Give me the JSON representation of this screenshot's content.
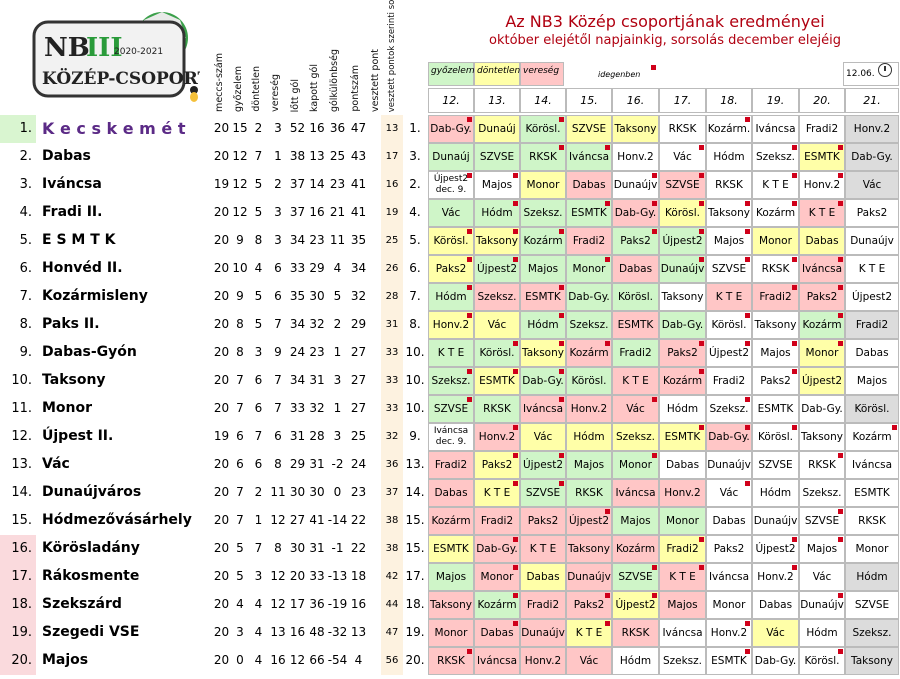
{
  "logo": {
    "line1": "NB",
    "roman": "III",
    "season": "2020-2021",
    "line2": "KÖZÉP-CSOPORT"
  },
  "header": {
    "columns": [
      "meccs-szám",
      "győzelem",
      "döntetlen",
      "vereség",
      "lőtt gól",
      "kapott gól",
      "gólkülönbség",
      "pontszám",
      "vesztett pont",
      "vesztett pontok szerinti sorrend"
    ],
    "title": "Az NB3 Közép csoportjának eredményei",
    "subtitle": "október elejétől napjainkig, sorsolás december elejéig",
    "legend": {
      "win": "győzelem",
      "draw": "döntetlen",
      "loss": "vereség",
      "home": "idegenben",
      "date": "12.06."
    },
    "rounds": [
      "12.",
      "13.",
      "14.",
      "15.",
      "16.",
      "17.",
      "18.",
      "19.",
      "20.",
      "21."
    ]
  },
  "colors": {
    "win": "#cff5c8",
    "draw": "#ffffa8",
    "loss": "#ffc6c6",
    "unplayed": "#ffffff",
    "bye": "#dcdcdc",
    "highlight_rank": "#d9f5d0",
    "relegation_rank": "#fadadd",
    "leader": "#5b2a86",
    "marker": "#d0001a"
  },
  "rows": [
    {
      "rank": "1.",
      "team": "K e c s k e m é t",
      "m": "20",
      "w": "15",
      "d": "2",
      "l": "3",
      "gf": "52",
      "ga": "16",
      "gd": "36",
      "p": "47",
      "lp": "13",
      "pos": "1.",
      "cells": [
        [
          "Dab-Gy.",
          "l",
          1
        ],
        [
          "Dunaúj",
          "d",
          0
        ],
        [
          "Körösl.",
          "g",
          1
        ],
        [
          "SZVSE",
          "d",
          0
        ],
        [
          "Taksony",
          "d",
          0
        ],
        [
          "RKSK",
          "n",
          0
        ],
        [
          "Kozárm.",
          "n",
          1
        ],
        [
          "Iváncsa",
          "n",
          0
        ],
        [
          "Fradi2",
          "n",
          0
        ],
        [
          "Honv.2",
          "x",
          0
        ]
      ]
    },
    {
      "rank": "2.",
      "team": "Dabas",
      "m": "20",
      "w": "12",
      "d": "7",
      "l": "1",
      "gf": "38",
      "ga": "13",
      "gd": "25",
      "p": "43",
      "lp": "17",
      "pos": "3.",
      "cells": [
        [
          "Dunaúj",
          "g",
          0
        ],
        [
          "SZVSE",
          "g",
          0
        ],
        [
          "RKSK",
          "g",
          1
        ],
        [
          "Iváncsa",
          "g",
          1
        ],
        [
          "Honv.2",
          "n",
          0
        ],
        [
          "Vác",
          "n",
          1
        ],
        [
          "Hódm",
          "n",
          0
        ],
        [
          "Szeksz.",
          "n",
          1
        ],
        [
          "ESMTK",
          "d",
          1
        ],
        [
          "Dab-Gy.",
          "x",
          0
        ]
      ]
    },
    {
      "rank": "3.",
      "team": "Iváncsa",
      "m": "19",
      "w": "12",
      "d": "5",
      "l": "2",
      "gf": "37",
      "ga": "14",
      "gd": "23",
      "p": "41",
      "lp": "16",
      "pos": "2.",
      "cells": [
        [
          "Újpest2|dec. 9.",
          "n",
          1
        ],
        [
          "Majos",
          "n",
          1
        ],
        [
          "Monor",
          "d",
          0
        ],
        [
          "Dabas",
          "l",
          0
        ],
        [
          "Dunaújv",
          "n",
          1
        ],
        [
          "SZVSE",
          "l",
          1
        ],
        [
          "RKSK",
          "n",
          0
        ],
        [
          "K T E",
          "n",
          1
        ],
        [
          "Honv.2",
          "n",
          1
        ],
        [
          "Vác",
          "x",
          0
        ]
      ]
    },
    {
      "rank": "4.",
      "team": "Fradi II.",
      "m": "20",
      "w": "12",
      "d": "5",
      "l": "3",
      "gf": "37",
      "ga": "16",
      "gd": "21",
      "p": "41",
      "lp": "19",
      "pos": "4.",
      "cells": [
        [
          "Vác",
          "g",
          0
        ],
        [
          "Hódm",
          "g",
          1
        ],
        [
          "Szeksz.",
          "g",
          0
        ],
        [
          "ESMTK",
          "g",
          1
        ],
        [
          "Dab-Gy.",
          "l",
          1
        ],
        [
          "Körösl.",
          "d",
          1
        ],
        [
          "Taksony",
          "n",
          1
        ],
        [
          "Kozárm",
          "n",
          1
        ],
        [
          "K T E",
          "l",
          1
        ],
        [
          "Paks2",
          "n",
          0
        ]
      ]
    },
    {
      "rank": "5.",
      "team": "E S M T K",
      "m": "20",
      "w": "9",
      "d": "8",
      "l": "3",
      "gf": "34",
      "ga": "23",
      "gd": "11",
      "p": "35",
      "pos": "5.",
      "lp": "25",
      "cells": [
        [
          "Körösl.",
          "d",
          1
        ],
        [
          "Taksony",
          "d",
          1
        ],
        [
          "Kozárm",
          "g",
          1
        ],
        [
          "Fradi2",
          "l",
          0
        ],
        [
          "Paks2",
          "g",
          1
        ],
        [
          "Újpest2",
          "g",
          1
        ],
        [
          "Majos",
          "n",
          1
        ],
        [
          "Monor",
          "d",
          0
        ],
        [
          "Dabas",
          "d",
          0
        ],
        [
          "Dunaújv",
          "n",
          0
        ]
      ]
    },
    {
      "rank": "6.",
      "team": "Honvéd II.",
      "m": "20",
      "w": "10",
      "d": "4",
      "l": "6",
      "gf": "33",
      "ga": "29",
      "gd": "4",
      "p": "34",
      "lp": "26",
      "pos": "6.",
      "cells": [
        [
          "Paks2",
          "d",
          1
        ],
        [
          "Újpest2",
          "g",
          1
        ],
        [
          "Majos",
          "g",
          0
        ],
        [
          "Monor",
          "g",
          1
        ],
        [
          "Dabas",
          "l",
          0
        ],
        [
          "Dunaújv",
          "g",
          1
        ],
        [
          "SZVSE",
          "n",
          1
        ],
        [
          "RKSK",
          "n",
          1
        ],
        [
          "Iváncsa",
          "l",
          1
        ],
        [
          "K T E",
          "n",
          0
        ]
      ]
    },
    {
      "rank": "7.",
      "team": "Kozármisleny",
      "m": "20",
      "w": "9",
      "d": "5",
      "l": "6",
      "gf": "35",
      "ga": "30",
      "gd": "5",
      "p": "32",
      "lp": "28",
      "pos": "7.",
      "cells": [
        [
          "Hódm",
          "g",
          1
        ],
        [
          "Szeksz.",
          "l",
          0
        ],
        [
          "ESMTK",
          "l",
          1
        ],
        [
          "Dab-Gy.",
          "g",
          0
        ],
        [
          "Körösl.",
          "g",
          0
        ],
        [
          "Taksony",
          "n",
          0
        ],
        [
          "K T E",
          "l",
          0
        ],
        [
          "Fradi2",
          "l",
          1
        ],
        [
          "Paks2",
          "l",
          1
        ],
        [
          "Újpest2",
          "n",
          0
        ]
      ]
    },
    {
      "rank": "8.",
      "team": "Paks II.",
      "m": "20",
      "w": "8",
      "d": "5",
      "l": "7",
      "gf": "34",
      "ga": "32",
      "gd": "2",
      "p": "29",
      "lp": "31",
      "pos": "8.",
      "cells": [
        [
          "Honv.2",
          "d",
          1
        ],
        [
          "Vác",
          "d",
          0
        ],
        [
          "Hódm",
          "g",
          1
        ],
        [
          "Szeksz.",
          "g",
          0
        ],
        [
          "ESMTK",
          "l",
          0
        ],
        [
          "Dab-Gy.",
          "g",
          0
        ],
        [
          "Körösl.",
          "n",
          1
        ],
        [
          "Taksony",
          "n",
          0
        ],
        [
          "Kozárm",
          "g",
          1
        ],
        [
          "Fradi2",
          "x",
          0
        ]
      ]
    },
    {
      "rank": "9.",
      "team": "Dabas-Gyón",
      "m": "20",
      "w": "8",
      "d": "3",
      "l": "9",
      "gf": "24",
      "ga": "23",
      "gd": "1",
      "p": "27",
      "lp": "33",
      "pos": "10.",
      "cells": [
        [
          "K T E",
          "g",
          0
        ],
        [
          "Körösl.",
          "g",
          1
        ],
        [
          "Taksony",
          "d",
          1
        ],
        [
          "Kozárm",
          "l",
          1
        ],
        [
          "Fradi2",
          "g",
          0
        ],
        [
          "Paks2",
          "l",
          1
        ],
        [
          "Újpest2",
          "n",
          1
        ],
        [
          "Majos",
          "n",
          1
        ],
        [
          "Monor",
          "d",
          1
        ],
        [
          "Dabas",
          "n",
          0
        ]
      ]
    },
    {
      "rank": "10.",
      "team": "Taksony",
      "m": "20",
      "w": "7",
      "d": "6",
      "l": "7",
      "gf": "34",
      "ga": "31",
      "gd": "3",
      "p": "27",
      "lp": "33",
      "pos": "10.",
      "cells": [
        [
          "Szeksz.",
          "g",
          1
        ],
        [
          "ESMTK",
          "d",
          1
        ],
        [
          "Dab-Gy.",
          "g",
          1
        ],
        [
          "Körösl.",
          "g",
          0
        ],
        [
          "K T E",
          "l",
          0
        ],
        [
          "Kozárm",
          "l",
          1
        ],
        [
          "Fradi2",
          "n",
          0
        ],
        [
          "Paks2",
          "n",
          1
        ],
        [
          "Újpest2",
          "d",
          0
        ],
        [
          "Majos",
          "n",
          0
        ]
      ]
    },
    {
      "rank": "11.",
      "team": "Monor",
      "m": "20",
      "w": "7",
      "d": "6",
      "l": "7",
      "gf": "33",
      "ga": "32",
      "gd": "1",
      "p": "27",
      "lp": "33",
      "pos": "10.",
      "cells": [
        [
          "SZVSE",
          "g",
          1
        ],
        [
          "RKSK",
          "g",
          0
        ],
        [
          "Iváncsa",
          "l",
          1
        ],
        [
          "Honv.2",
          "l",
          0
        ],
        [
          "Vác",
          "l",
          1
        ],
        [
          "Hódm",
          "n",
          0
        ],
        [
          "Szeksz.",
          "n",
          1
        ],
        [
          "ESMTK",
          "n",
          0
        ],
        [
          "Dab-Gy.",
          "n",
          0
        ],
        [
          "Körösl.",
          "x",
          0
        ]
      ]
    },
    {
      "rank": "12.",
      "team": "Újpest II.",
      "m": "19",
      "w": "6",
      "d": "7",
      "l": "6",
      "gf": "31",
      "ga": "28",
      "gd": "3",
      "p": "25",
      "lp": "32",
      "pos": "9.",
      "cells": [
        [
          "Iváncsa|dec. 9.",
          "n",
          0
        ],
        [
          "Honv.2",
          "l",
          1
        ],
        [
          "Vác",
          "d",
          0
        ],
        [
          "Hódm",
          "d",
          0
        ],
        [
          "Szeksz.",
          "d",
          0
        ],
        [
          "ESMTK",
          "d",
          1
        ],
        [
          "Dab-Gy.",
          "l",
          1
        ],
        [
          "Körösl.",
          "n",
          1
        ],
        [
          "Taksony",
          "n",
          0
        ],
        [
          "Kozárm",
          "n",
          1
        ]
      ]
    },
    {
      "rank": "13.",
      "team": "Vác",
      "m": "20",
      "w": "6",
      "d": "6",
      "l": "8",
      "gf": "29",
      "ga": "31",
      "gd": "-2",
      "p": "24",
      "lp": "36",
      "pos": "13.",
      "cells": [
        [
          "Fradi2",
          "l",
          0
        ],
        [
          "Paks2",
          "d",
          1
        ],
        [
          "Újpest2",
          "g",
          1
        ],
        [
          "Majos",
          "g",
          0
        ],
        [
          "Monor",
          "g",
          1
        ],
        [
          "Dabas",
          "n",
          0
        ],
        [
          "Dunaújv",
          "n",
          0
        ],
        [
          "SZVSE",
          "n",
          0
        ],
        [
          "RKSK",
          "n",
          1
        ],
        [
          "Iváncsa",
          "n",
          0
        ]
      ]
    },
    {
      "rank": "14.",
      "team": "Dunaújváros",
      "m": "20",
      "w": "7",
      "d": "2",
      "l": "11",
      "gf": "30",
      "ga": "30",
      "gd": "0",
      "p": "23",
      "lp": "37",
      "pos": "14.",
      "cells": [
        [
          "Dabas",
          "l",
          0
        ],
        [
          "K T E",
          "d",
          1
        ],
        [
          "SZVSE",
          "g",
          1
        ],
        [
          "RKSK",
          "g",
          0
        ],
        [
          "Iváncsa",
          "l",
          0
        ],
        [
          "Honv.2",
          "l",
          0
        ],
        [
          "Vác",
          "n",
          1
        ],
        [
          "Hódm",
          "n",
          0
        ],
        [
          "Szeksz.",
          "n",
          0
        ],
        [
          "ESMTK",
          "n",
          0
        ]
      ]
    },
    {
      "rank": "15.",
      "team": "Hódmezővásárhely",
      "m": "20",
      "w": "7",
      "d": "1",
      "l": "12",
      "gf": "27",
      "ga": "41",
      "gd": "-14",
      "p": "22",
      "lp": "38",
      "pos": "15.",
      "cells": [
        [
          "Kozárm",
          "l",
          0
        ],
        [
          "Fradi2",
          "l",
          0
        ],
        [
          "Paks2",
          "l",
          0
        ],
        [
          "Újpest2",
          "l",
          1
        ],
        [
          "Majos",
          "g",
          0
        ],
        [
          "Monor",
          "g",
          0
        ],
        [
          "Dabas",
          "n",
          0
        ],
        [
          "Dunaújv",
          "n",
          0
        ],
        [
          "SZVSE",
          "n",
          1
        ],
        [
          "RKSK",
          "n",
          0
        ]
      ]
    },
    {
      "rank": "16.",
      "team": "Körösladány",
      "m": "20",
      "w": "5",
      "d": "7",
      "l": "8",
      "gf": "30",
      "ga": "31",
      "gd": "-1",
      "p": "22",
      "lp": "38",
      "pos": "15.",
      "cells": [
        [
          "ESMTK",
          "d",
          0
        ],
        [
          "Dab-Gy.",
          "l",
          1
        ],
        [
          "K T E",
          "l",
          0
        ],
        [
          "Taksony",
          "l",
          0
        ],
        [
          "Kozárm",
          "l",
          0
        ],
        [
          "Fradi2",
          "d",
          1
        ],
        [
          "Paks2",
          "n",
          0
        ],
        [
          "Újpest2",
          "n",
          1
        ],
        [
          "Majos",
          "n",
          1
        ],
        [
          "Monor",
          "n",
          0
        ]
      ]
    },
    {
      "rank": "17.",
      "team": "Rákosmente",
      "m": "20",
      "w": "5",
      "d": "3",
      "l": "12",
      "gf": "20",
      "ga": "33",
      "gd": "-13",
      "p": "18",
      "lp": "42",
      "pos": "17.",
      "cells": [
        [
          "Majos",
          "g",
          0
        ],
        [
          "Monor",
          "l",
          1
        ],
        [
          "Dabas",
          "d",
          0
        ],
        [
          "Dunaújv",
          "l",
          0
        ],
        [
          "SZVSE",
          "g",
          1
        ],
        [
          "K T E",
          "l",
          1
        ],
        [
          "Iváncsa",
          "n",
          0
        ],
        [
          "Honv.2",
          "n",
          1
        ],
        [
          "Vác",
          "n",
          0
        ],
        [
          "Hódm",
          "x",
          0
        ]
      ]
    },
    {
      "rank": "18.",
      "team": "Szekszárd",
      "m": "20",
      "w": "4",
      "d": "4",
      "l": "12",
      "gf": "17",
      "ga": "36",
      "gd": "-19",
      "p": "16",
      "lp": "44",
      "pos": "18.",
      "cells": [
        [
          "Taksony",
          "l",
          0
        ],
        [
          "Kozárm",
          "g",
          1
        ],
        [
          "Fradi2",
          "l",
          0
        ],
        [
          "Paks2",
          "l",
          1
        ],
        [
          "Újpest2",
          "d",
          1
        ],
        [
          "Majos",
          "l",
          0
        ],
        [
          "Monor",
          "n",
          0
        ],
        [
          "Dabas",
          "n",
          0
        ],
        [
          "Dunaújv",
          "n",
          1
        ],
        [
          "SZVSE",
          "n",
          0
        ]
      ]
    },
    {
      "rank": "19.",
      "team": "Szegedi VSE",
      "m": "20",
      "w": "3",
      "d": "4",
      "l": "13",
      "gf": "16",
      "ga": "48",
      "gd": "-32",
      "p": "13",
      "lp": "47",
      "pos": "19.",
      "cells": [
        [
          "Monor",
          "l",
          0
        ],
        [
          "Dabas",
          "l",
          1
        ],
        [
          "Dunaújv",
          "l",
          0
        ],
        [
          "K T E",
          "d",
          1
        ],
        [
          "RKSK",
          "l",
          0
        ],
        [
          "Iváncsa",
          "n",
          0
        ],
        [
          "Honv.2",
          "n",
          1
        ],
        [
          "Vác",
          "d",
          0
        ],
        [
          "Hódm",
          "n",
          0
        ],
        [
          "Szeksz.",
          "x",
          0
        ]
      ]
    },
    {
      "rank": "20.",
      "team": "Majos",
      "m": "20",
      "w": "0",
      "d": "4",
      "l": "16",
      "gf": "12",
      "ga": "66",
      "gd": "-54",
      "p": "4",
      "lp": "56",
      "pos": "20.",
      "cells": [
        [
          "RKSK",
          "l",
          1
        ],
        [
          "Iváncsa",
          "l",
          0
        ],
        [
          "Honv.2",
          "l",
          0
        ],
        [
          "Vác",
          "l",
          0
        ],
        [
          "Hódm",
          "n",
          0
        ],
        [
          "Szeksz.",
          "n",
          0
        ],
        [
          "ESMTK",
          "n",
          1
        ],
        [
          "Dab-Gy.",
          "n",
          0
        ],
        [
          "Körösl.",
          "n",
          1
        ],
        [
          "Taksony",
          "x",
          0
        ]
      ]
    }
  ]
}
